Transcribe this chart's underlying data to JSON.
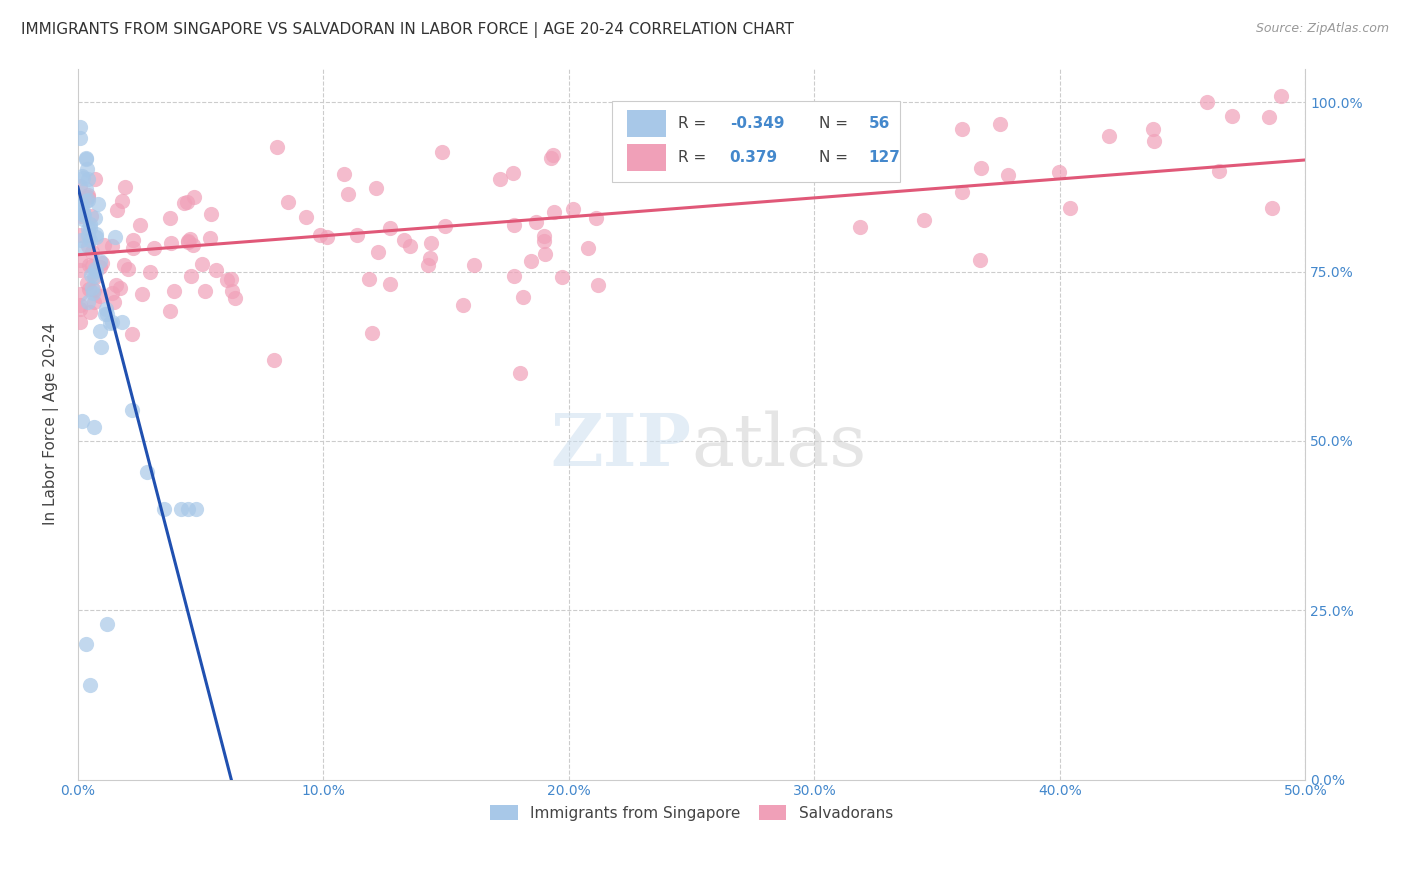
{
  "title": "IMMIGRANTS FROM SINGAPORE VS SALVADORAN IN LABOR FORCE | AGE 20-24 CORRELATION CHART",
  "source": "Source: ZipAtlas.com",
  "ylabel": "In Labor Force | Age 20-24",
  "xlim": [
    0.0,
    0.5
  ],
  "ylim": [
    0.0,
    1.05
  ],
  "yticklabels_right": [
    "0.0%",
    "25.0%",
    "50.0%",
    "75.0%",
    "100.0%"
  ],
  "color_singapore": "#a8c8e8",
  "color_salvadoran": "#f0a0b8",
  "color_line_singapore": "#2050b0",
  "color_line_salvadoran": "#e05878",
  "legend_label1": "Immigrants from Singapore",
  "legend_label2": "Salvadorans",
  "sing_intercept": 0.875,
  "sing_slope": -14.0,
  "salv_intercept": 0.775,
  "salv_slope": 0.28
}
